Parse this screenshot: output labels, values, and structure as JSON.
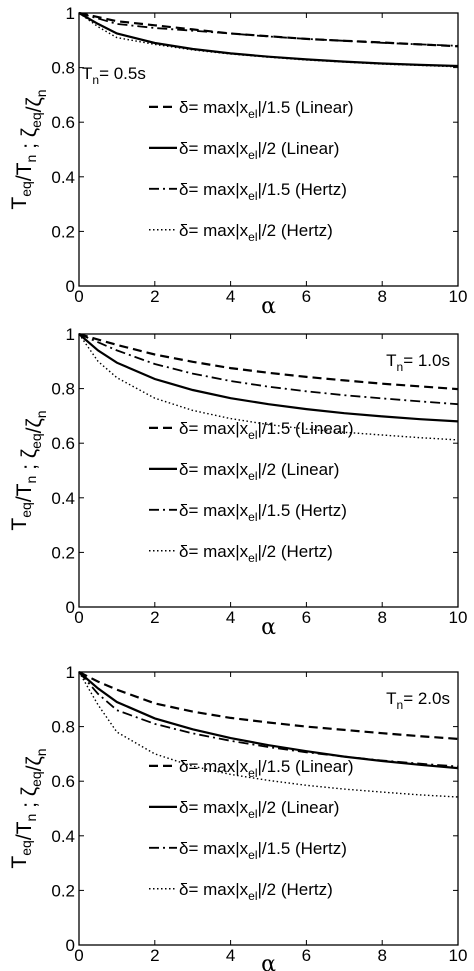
{
  "chart_data": [
    {
      "type": "line",
      "annotation": {
        "main": "T",
        "sub": "n",
        "rest": "= 0.5s"
      },
      "xlabel": "α",
      "ylabel": {
        "parts": [
          [
            "T",
            ""
          ],
          [
            "eq",
            "sub"
          ],
          [
            "/T",
            ""
          ],
          [
            "n",
            "sub"
          ],
          [
            " ; ",
            ""
          ],
          [
            "ζ",
            ""
          ],
          [
            "eq",
            "sub"
          ],
          [
            "/ζ",
            ""
          ],
          [
            "n",
            "sub"
          ]
        ]
      },
      "xlim": [
        0,
        10
      ],
      "ylim": [
        0,
        1
      ],
      "xticks": [
        "0",
        "2",
        "4",
        "6",
        "8",
        "10"
      ],
      "yticks": [
        "0",
        "0.2",
        "0.4",
        "0.6",
        "0.8",
        "1"
      ],
      "legend_position": "center-right",
      "series": [
        {
          "label": {
            "pre": "δ= max|x",
            "sub": "el",
            "post": "|/1.5 (Linear)"
          },
          "style": "dashed",
          "x": [
            0,
            0.5,
            1,
            2,
            3,
            4,
            5,
            6,
            7,
            8,
            9,
            10
          ],
          "y": [
            1.0,
            0.985,
            0.97,
            0.955,
            0.94,
            0.925,
            0.915,
            0.905,
            0.898,
            0.892,
            0.885,
            0.878
          ]
        },
        {
          "label": {
            "pre": "δ= max|x",
            "sub": "el",
            "post": "|/2 (Linear)"
          },
          "style": "solid",
          "x": [
            0,
            0.5,
            1,
            2,
            3,
            4,
            5,
            6,
            7,
            8,
            9,
            10
          ],
          "y": [
            1.0,
            0.96,
            0.925,
            0.89,
            0.868,
            0.852,
            0.84,
            0.83,
            0.822,
            0.815,
            0.81,
            0.806
          ]
        },
        {
          "label": {
            "pre": "δ= max|x",
            "sub": "el",
            "post": "|/1.5 (Hertz)"
          },
          "style": "dashdot",
          "x": [
            0,
            0.5,
            1,
            2,
            3,
            4,
            5,
            6,
            7,
            8,
            9,
            10
          ],
          "y": [
            1.0,
            0.98,
            0.96,
            0.945,
            0.935,
            0.925,
            0.914,
            0.905,
            0.898,
            0.891,
            0.885,
            0.88
          ]
        },
        {
          "label": {
            "pre": "δ= max|x",
            "sub": "el",
            "post": "|/2 (Hertz)"
          },
          "style": "dotted",
          "x": [
            0,
            0.5,
            1,
            2,
            3,
            4,
            5,
            6,
            7,
            8,
            9,
            10
          ],
          "y": [
            1.0,
            0.95,
            0.91,
            0.885,
            0.865,
            0.85,
            0.838,
            0.828,
            0.82,
            0.813,
            0.808,
            0.803
          ]
        }
      ]
    },
    {
      "type": "line",
      "annotation": {
        "main": "T",
        "sub": "n",
        "rest": "= 1.0s"
      },
      "xlabel": "α",
      "ylabel": {
        "parts": [
          [
            "T",
            ""
          ],
          [
            "eq",
            "sub"
          ],
          [
            "/T",
            ""
          ],
          [
            "n",
            "sub"
          ],
          [
            " ; ",
            ""
          ],
          [
            "ζ",
            ""
          ],
          [
            "eq",
            "sub"
          ],
          [
            "/ζ",
            ""
          ],
          [
            "n",
            "sub"
          ]
        ]
      },
      "xlim": [
        0,
        10
      ],
      "ylim": [
        0,
        1
      ],
      "xticks": [
        "0",
        "2",
        "4",
        "6",
        "8",
        "10"
      ],
      "yticks": [
        "0",
        "0.2",
        "0.4",
        "0.6",
        "0.8",
        "1"
      ],
      "legend_position": "center-right",
      "series": [
        {
          "label": {
            "pre": "δ= max|x",
            "sub": "el",
            "post": "|/1.5 (Linear)"
          },
          "style": "dashed",
          "x": [
            0,
            0.5,
            1,
            2,
            3,
            4,
            5,
            6,
            7,
            8,
            9,
            10
          ],
          "y": [
            1.0,
            0.98,
            0.96,
            0.925,
            0.898,
            0.875,
            0.858,
            0.843,
            0.83,
            0.818,
            0.808,
            0.798
          ]
        },
        {
          "label": {
            "pre": "δ= max|x",
            "sub": "el",
            "post": "|/2 (Linear)"
          },
          "style": "solid",
          "x": [
            0,
            0.5,
            1,
            2,
            3,
            4,
            5,
            6,
            7,
            8,
            9,
            10
          ],
          "y": [
            1.0,
            0.94,
            0.895,
            0.835,
            0.795,
            0.765,
            0.743,
            0.725,
            0.71,
            0.698,
            0.688,
            0.68
          ]
        },
        {
          "label": {
            "pre": "δ= max|x",
            "sub": "el",
            "post": "|/1.5 (Hertz)"
          },
          "style": "dashdot",
          "x": [
            0,
            0.5,
            1,
            2,
            3,
            4,
            5,
            6,
            7,
            8,
            9,
            10
          ],
          "y": [
            1.0,
            0.97,
            0.94,
            0.89,
            0.855,
            0.828,
            0.807,
            0.79,
            0.776,
            0.764,
            0.753,
            0.743
          ]
        },
        {
          "label": {
            "pre": "δ= max|x",
            "sub": "el",
            "post": "|/2 (Hertz)"
          },
          "style": "dotted",
          "x": [
            0,
            0.5,
            1,
            2,
            3,
            4,
            5,
            6,
            7,
            8,
            9,
            10
          ],
          "y": [
            1.0,
            0.9,
            0.84,
            0.765,
            0.72,
            0.69,
            0.668,
            0.652,
            0.64,
            0.63,
            0.62,
            0.612
          ]
        }
      ]
    },
    {
      "type": "line",
      "annotation": {
        "main": "T",
        "sub": "n",
        "rest": "= 2.0s"
      },
      "xlabel": "α",
      "ylabel": {
        "parts": [
          [
            "T",
            ""
          ],
          [
            "eq",
            "sub"
          ],
          [
            "/T",
            ""
          ],
          [
            "n",
            "sub"
          ],
          [
            " ; ",
            ""
          ],
          [
            "ζ",
            ""
          ],
          [
            "eq",
            "sub"
          ],
          [
            "/ζ",
            ""
          ],
          [
            "n",
            "sub"
          ]
        ]
      },
      "xlim": [
        0,
        10
      ],
      "ylim": [
        0,
        1
      ],
      "xticks": [
        "0",
        "2",
        "4",
        "6",
        "8",
        "10"
      ],
      "yticks": [
        "0",
        "0.2",
        "0.4",
        "0.6",
        "0.8",
        "1"
      ],
      "legend_position": "center-right",
      "series": [
        {
          "label": {
            "pre": "δ= max|x",
            "sub": "el",
            "post": "|/1.5 (Linear)"
          },
          "style": "dashed",
          "x": [
            0,
            0.5,
            1,
            2,
            3,
            4,
            5,
            6,
            7,
            8,
            9,
            10
          ],
          "y": [
            1.0,
            0.965,
            0.935,
            0.885,
            0.855,
            0.832,
            0.815,
            0.8,
            0.788,
            0.776,
            0.765,
            0.755
          ]
        },
        {
          "label": {
            "pre": "δ= max|x",
            "sub": "el",
            "post": "|/2 (Linear)"
          },
          "style": "solid",
          "x": [
            0,
            0.5,
            1,
            2,
            3,
            4,
            5,
            6,
            7,
            8,
            9,
            10
          ],
          "y": [
            1.0,
            0.94,
            0.89,
            0.83,
            0.79,
            0.758,
            0.732,
            0.71,
            0.69,
            0.674,
            0.66,
            0.648
          ]
        },
        {
          "label": {
            "pre": "δ= max|x",
            "sub": "el",
            "post": "|/1.5 (Hertz)"
          },
          "style": "dashdot",
          "x": [
            0,
            0.5,
            1,
            2,
            3,
            4,
            5,
            6,
            7,
            8,
            9,
            10
          ],
          "y": [
            1.0,
            0.92,
            0.86,
            0.81,
            0.775,
            0.748,
            0.725,
            0.706,
            0.69,
            0.676,
            0.664,
            0.654
          ]
        },
        {
          "label": {
            "pre": "δ= max|x",
            "sub": "el",
            "post": "|/2 (Hertz)"
          },
          "style": "dotted",
          "x": [
            0,
            0.5,
            1,
            2,
            3,
            4,
            5,
            6,
            7,
            8,
            9,
            10
          ],
          "y": [
            1.0,
            0.88,
            0.78,
            0.7,
            0.655,
            0.625,
            0.603,
            0.585,
            0.571,
            0.56,
            0.55,
            0.542
          ]
        }
      ]
    }
  ]
}
